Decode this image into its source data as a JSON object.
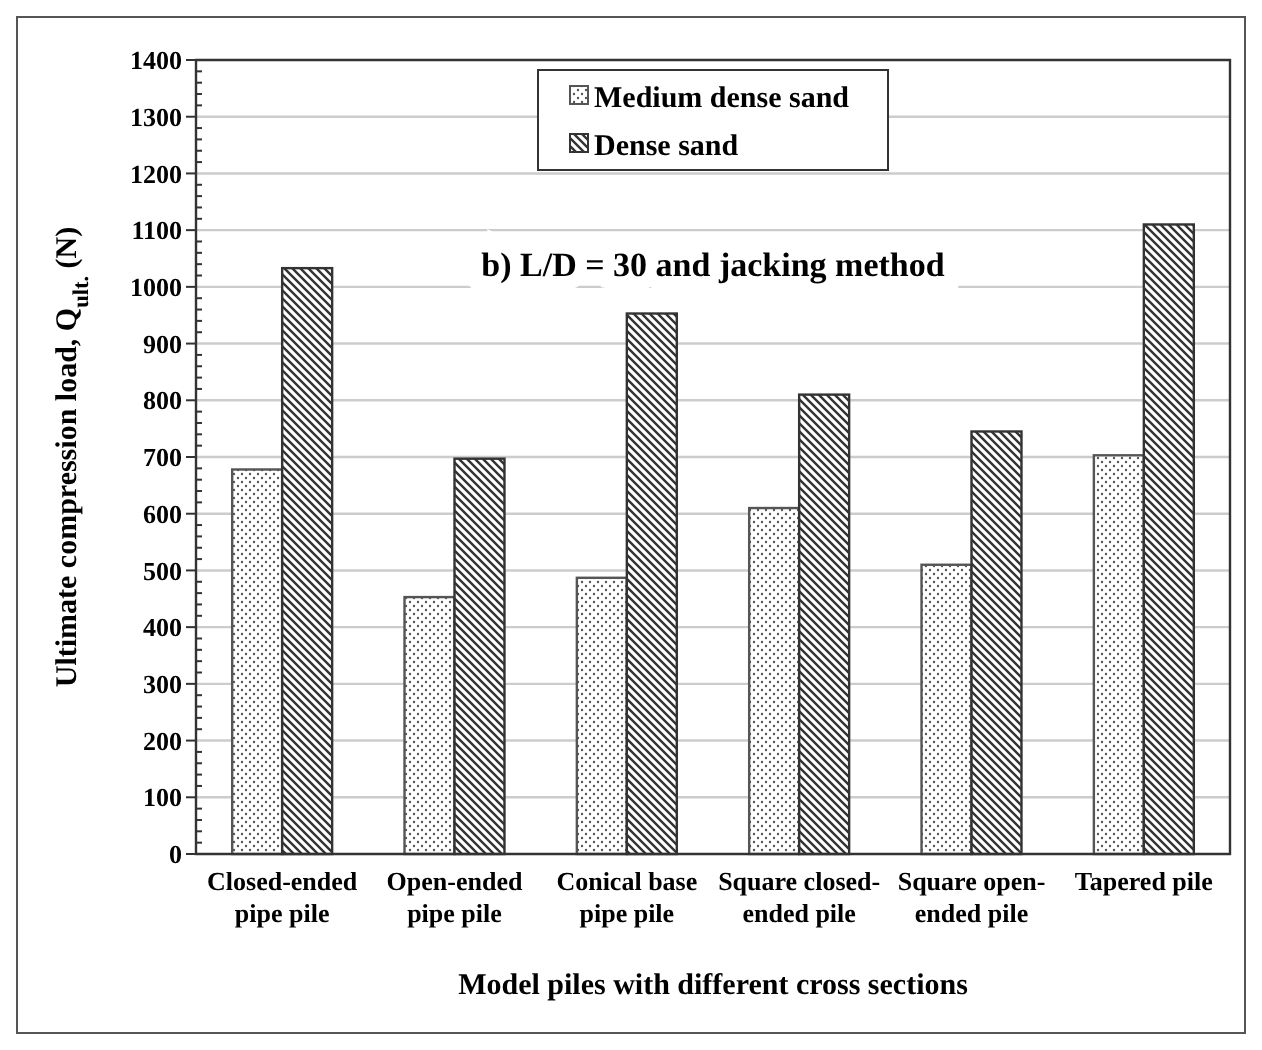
{
  "chart_data": {
    "type": "bar",
    "title": "b) L/D = 30 and jacking method",
    "xlabel": "Model piles with different cross sections",
    "ylabel": "Ultimate compression load, Q$_{ult.}$ (N)",
    "categories": [
      "Closed-ended pipe pile",
      "Open-ended pipe pile",
      "Conical base pipe pile",
      "Square closed-ended pile",
      "Square open-ended pile",
      "Tapered pile"
    ],
    "series": [
      {
        "name": "Medium dense sand",
        "color": "#555555",
        "values": [
          678,
          453,
          487,
          610,
          510,
          703
        ]
      },
      {
        "name": "Dense sand",
        "color": "#333333",
        "values": [
          1033,
          697,
          953,
          810,
          745,
          1110
        ]
      }
    ],
    "ylim": [
      0,
      1400
    ],
    "yticks": [
      0,
      100,
      200,
      300,
      400,
      500,
      600,
      700,
      800,
      900,
      1000,
      1100,
      1200,
      1300,
      1400
    ],
    "grid": "y",
    "legend": "top"
  }
}
